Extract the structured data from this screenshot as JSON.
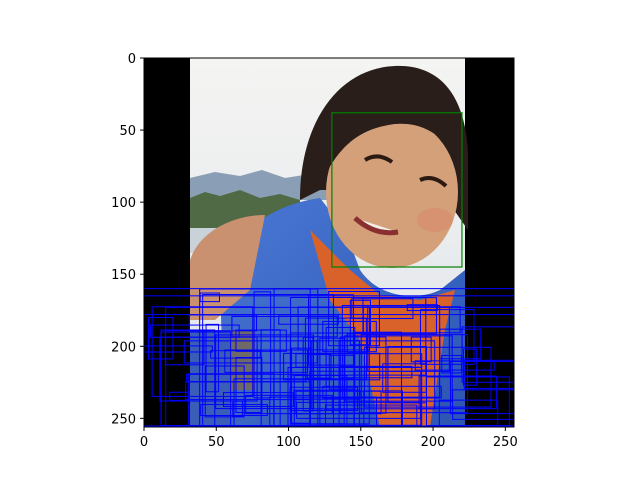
{
  "figure": {
    "x_ticks": [
      "0",
      "50",
      "100",
      "150",
      "200",
      "250"
    ],
    "y_ticks": [
      "0",
      "50",
      "100",
      "150",
      "200",
      "250"
    ],
    "x_range": [
      0,
      256
    ],
    "y_range": [
      256,
      0
    ],
    "image_content": "photo of a smiling young girl in a blue life vest, with black padding bars on left and right",
    "padding_left_extent": [
      0,
      32
    ],
    "padding_right_extent": [
      222,
      256
    ],
    "green_box": {
      "x0": 130,
      "y0": 38,
      "x1": 220,
      "y1": 145
    },
    "blue_boxes_region": {
      "x0": 0,
      "y0": 160,
      "x1": 256,
      "y1": 256
    },
    "colors": {
      "green_box": "#008000",
      "blue_boxes": "#0000ff",
      "padding": "#000000",
      "axis": "#000000"
    }
  }
}
